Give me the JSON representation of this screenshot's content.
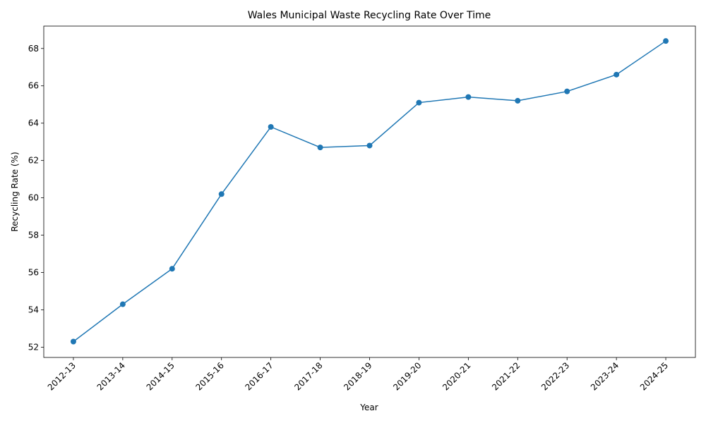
{
  "chart_data": {
    "type": "line",
    "title": "Wales Municipal Waste Recycling Rate Over Time",
    "x_label": "Year",
    "y_label": "Recycling Rate (%)",
    "categories": [
      "2012-13",
      "2013-14",
      "2014-15",
      "2015-16",
      "2016-17",
      "2017-18",
      "2018-19",
      "2019-20",
      "2020-21",
      "2021-22",
      "2022-23",
      "2023-24",
      "2024-25"
    ],
    "values": [
      52.3,
      54.3,
      56.2,
      60.2,
      63.8,
      62.7,
      62.8,
      65.1,
      65.4,
      65.2,
      65.7,
      66.6,
      68.4
    ],
    "color": "#1f77b4",
    "ylim": [
      51.45,
      69.2
    ],
    "yticks": [
      52,
      54,
      56,
      58,
      60,
      62,
      64,
      66,
      68
    ],
    "grid": false
  }
}
